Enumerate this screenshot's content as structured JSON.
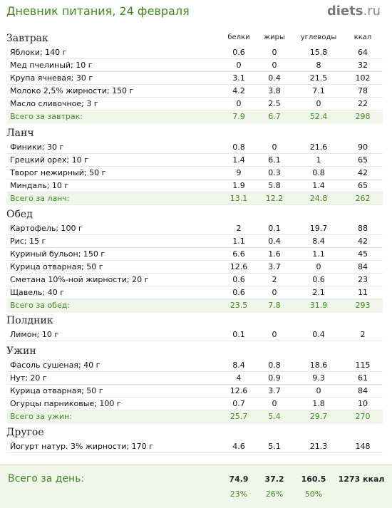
{
  "title": "Дневник питания, 24 февраля",
  "logo": {
    "name": "diets",
    "ext": ".ru"
  },
  "columns": [
    "белки",
    "жиры",
    "углеводы",
    "ккал"
  ],
  "sections": [
    {
      "title": "Завтрак",
      "rows": [
        {
          "name": "Яблоки; 140 г",
          "p": "0.6",
          "f": "0",
          "c": "15.8",
          "k": "64"
        },
        {
          "name": "Мед пчелиный; 10 г",
          "p": "0",
          "f": "0",
          "c": "8",
          "k": "32"
        },
        {
          "name": "Крупа ячневая; 30 г",
          "p": "3.1",
          "f": "0.4",
          "c": "21.5",
          "k": "102"
        },
        {
          "name": "Молоко 2,5% жирности; 150 г",
          "p": "4.2",
          "f": "3.8",
          "c": "7.1",
          "k": "78"
        },
        {
          "name": "Масло сливочное; 3 г",
          "p": "0",
          "f": "2.5",
          "c": "0",
          "k": "22"
        }
      ],
      "total": {
        "name": "Всего за завтрак:",
        "p": "7.9",
        "f": "6.7",
        "c": "52.4",
        "k": "298"
      }
    },
    {
      "title": "Ланч",
      "rows": [
        {
          "name": "Финики; 30 г",
          "p": "0.8",
          "f": "0",
          "c": "21.6",
          "k": "90"
        },
        {
          "name": "Грецкий орех; 10 г",
          "p": "1.4",
          "f": "6.1",
          "c": "1",
          "k": "65"
        },
        {
          "name": "Творог нежирный; 50 г",
          "p": "9",
          "f": "0.3",
          "c": "0.8",
          "k": "42"
        },
        {
          "name": "Миндаль; 10 г",
          "p": "1.9",
          "f": "5.8",
          "c": "1.4",
          "k": "65"
        }
      ],
      "total": {
        "name": "Всего за ланч:",
        "p": "13.1",
        "f": "12.2",
        "c": "24.8",
        "k": "262"
      }
    },
    {
      "title": "Обед",
      "rows": [
        {
          "name": "Картофель; 100 г",
          "p": "2",
          "f": "0.1",
          "c": "19.7",
          "k": "88"
        },
        {
          "name": "Рис; 15 г",
          "p": "1.1",
          "f": "0.4",
          "c": "8.4",
          "k": "42"
        },
        {
          "name": "Куриный бульон; 150 г",
          "p": "6.6",
          "f": "1.6",
          "c": "1.1",
          "k": "45"
        },
        {
          "name": "Курица отварная; 50 г",
          "p": "12.6",
          "f": "3.7",
          "c": "0",
          "k": "84"
        },
        {
          "name": "Сметана 10%-ной жирности; 20 г",
          "p": "0.6",
          "f": "2",
          "c": "0.6",
          "k": "23"
        },
        {
          "name": "Щавель; 40 г",
          "p": "0.6",
          "f": "0",
          "c": "2.1",
          "k": "11"
        }
      ],
      "total": {
        "name": "Всего за обед:",
        "p": "23.5",
        "f": "7.8",
        "c": "31.9",
        "k": "293"
      }
    },
    {
      "title": "Полдник",
      "rows": [
        {
          "name": "Лимон; 10 г",
          "p": "0.1",
          "f": "0",
          "c": "0.4",
          "k": "2"
        }
      ],
      "total": null
    },
    {
      "title": "Ужин",
      "rows": [
        {
          "name": "Фасоль сушеная; 40 г",
          "p": "8.4",
          "f": "0.8",
          "c": "18.6",
          "k": "115"
        },
        {
          "name": "Нут; 20 г",
          "p": "4",
          "f": "0.9",
          "c": "9.3",
          "k": "61"
        },
        {
          "name": "Курица отварная; 50 г",
          "p": "12.6",
          "f": "3.7",
          "c": "0",
          "k": "84"
        },
        {
          "name": "Огурцы парниковые; 100 г",
          "p": "0.7",
          "f": "0",
          "c": "1.8",
          "k": "10"
        }
      ],
      "total": {
        "name": "Всего за ужин:",
        "p": "25.7",
        "f": "5.4",
        "c": "29.7",
        "k": "270"
      }
    },
    {
      "title": "Другое",
      "rows": [
        {
          "name": "Йогурт натур. 3% жирности; 170 г",
          "p": "4.6",
          "f": "5.1",
          "c": "21.3",
          "k": "148"
        }
      ],
      "total": null
    }
  ],
  "day_total": {
    "label": "Всего за день:",
    "p": "74.9",
    "f": "37.2",
    "c": "160.5",
    "k": "1273 ккал",
    "p_pct": "23%",
    "f_pct": "26%",
    "c_pct": "50%"
  },
  "colors": {
    "accent_green": "#3d8a1f",
    "total_bg": "#f0f7ea"
  }
}
